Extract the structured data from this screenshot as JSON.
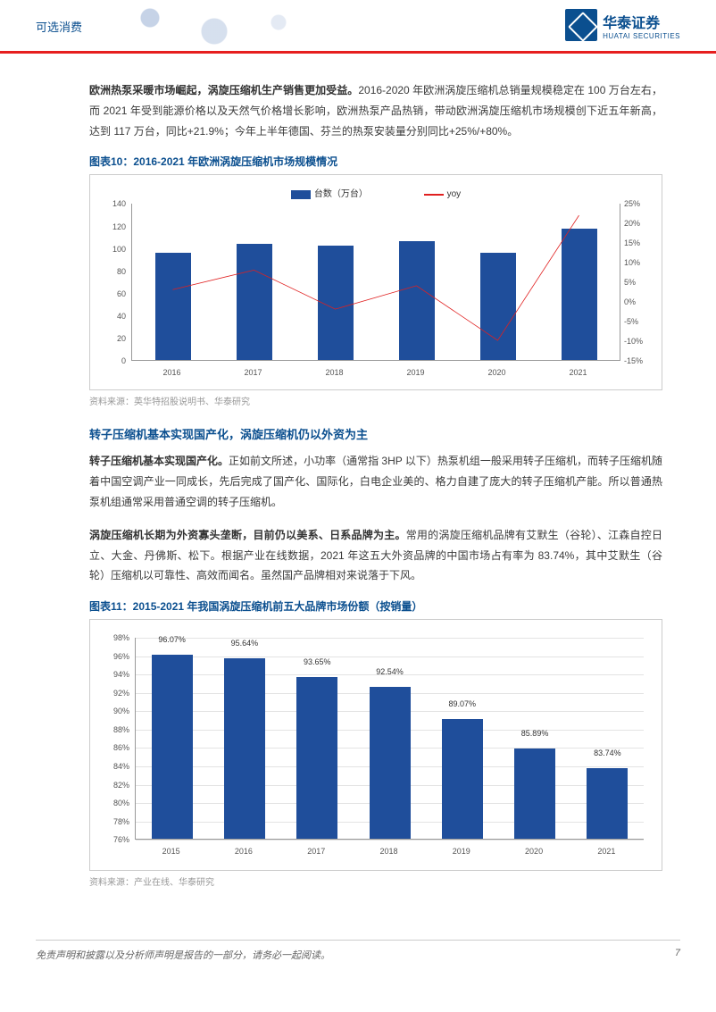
{
  "header": {
    "category": "可选消费",
    "company_cn": "华泰证券",
    "company_en": "HUATAI SECURITIES"
  },
  "para1": {
    "bold": "欧洲热泵采暖市场崛起，涡旋压缩机生产销售更加受益。",
    "rest": "2016-2020 年欧洲涡旋压缩机总销量规模稳定在 100 万台左右，而 2021 年受到能源价格以及天然气价格增长影响，欧洲热泵产品热销，带动欧洲涡旋压缩机市场规模创下近五年新高，达到 117 万台，同比+21.9%；今年上半年德国、芬兰的热泵安装量分别同比+25%/+80%。"
  },
  "chart10": {
    "title": "图表10：2016-2021 年欧洲涡旋压缩机市场规模情况",
    "type": "bar+line",
    "legend_bar": "台数（万台）",
    "legend_line": "yoy",
    "categories": [
      "2016",
      "2017",
      "2018",
      "2019",
      "2020",
      "2021"
    ],
    "bar_values": [
      96,
      104,
      102,
      106,
      96,
      117
    ],
    "line_values": [
      3,
      8,
      -2,
      4,
      -10,
      22
    ],
    "y1_ticks": [
      0,
      20,
      40,
      60,
      80,
      100,
      120,
      140
    ],
    "y2_ticks": [
      -15,
      -10,
      -5,
      0,
      5,
      10,
      15,
      20,
      25
    ],
    "y1_max": 140,
    "y2_min": -15,
    "y2_max": 25,
    "bar_color": "#1f4e9b",
    "line_color": "#e02020",
    "source": "资料来源：英华特招股说明书、华泰研究"
  },
  "section2_title": "转子压缩机基本实现国产化，涡旋压缩机仍以外资为主",
  "para2": {
    "bold": "转子压缩机基本实现国产化。",
    "rest": "正如前文所述，小功率（通常指 3HP 以下）热泵机组一般采用转子压缩机，而转子压缩机随着中国空调产业一同成长，先后完成了国产化、国际化，白电企业美的、格力自建了庞大的转子压缩机产能。所以普通热泵机组通常采用普通空调的转子压缩机。"
  },
  "para3": {
    "bold": "涡旋压缩机长期为外资寡头垄断，目前仍以美系、日系品牌为主。",
    "rest": "常用的涡旋压缩机品牌有艾默生（谷轮）、江森自控日立、大金、丹佛斯、松下。根据产业在线数据，2021 年这五大外资品牌的中国市场占有率为 83.74%，其中艾默生（谷轮）压缩机以可靠性、高效而闻名。虽然国产品牌相对来说落于下风。"
  },
  "chart11": {
    "title": "图表11：2015-2021 年我国涡旋压缩机前五大品牌市场份额（按销量）",
    "type": "bar",
    "categories": [
      "2015",
      "2016",
      "2017",
      "2018",
      "2019",
      "2020",
      "2021"
    ],
    "values": [
      96.07,
      95.64,
      93.65,
      92.54,
      89.07,
      85.89,
      83.74
    ],
    "value_labels": [
      "96.07%",
      "95.64%",
      "93.65%",
      "92.54%",
      "89.07%",
      "85.89%",
      "83.74%"
    ],
    "y_ticks": [
      76,
      78,
      80,
      82,
      84,
      86,
      88,
      90,
      92,
      94,
      96,
      98
    ],
    "y_min": 76,
    "y_max": 98,
    "bar_color": "#1f4e9b",
    "grid_color": "#e3e3e3",
    "source": "资料来源：产业在线、华泰研究"
  },
  "footer": {
    "disclaimer": "免责声明和披露以及分析师声明是报告的一部分，请务必一起阅读。",
    "page": "7"
  }
}
